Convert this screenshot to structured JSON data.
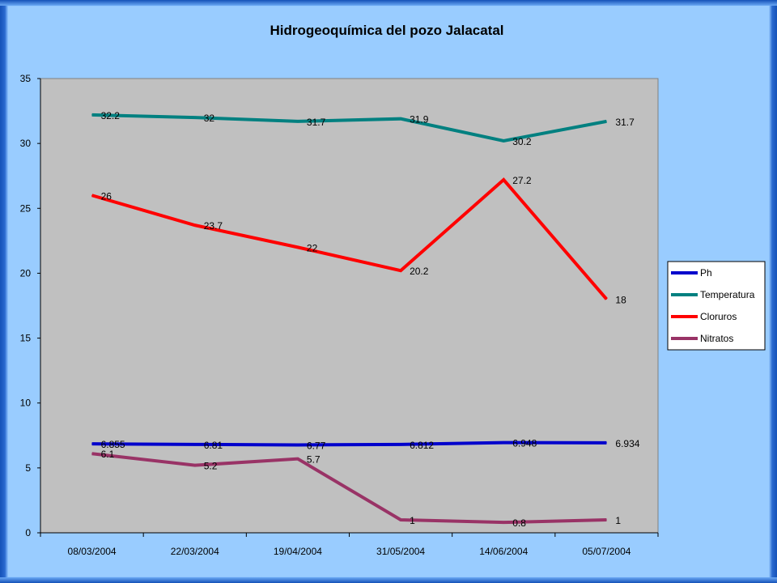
{
  "chart_data": {
    "type": "line",
    "title": "Hidrogeoquímica del pozo Jalacatal",
    "xlabel": "",
    "ylabel": "",
    "categories": [
      "08/03/2004",
      "22/03/2004",
      "19/04/2004",
      "31/05/2004",
      "14/06/2004",
      "05/07/2004"
    ],
    "ylim": [
      0,
      35
    ],
    "yticks": [
      "0",
      "5",
      "10",
      "15",
      "20",
      "25",
      "30",
      "35"
    ],
    "grid": false,
    "legend_position": "right",
    "series": [
      {
        "name": "Ph",
        "color": "#0000cc",
        "values": [
          6.855,
          6.81,
          6.77,
          6.812,
          6.948,
          6.934
        ],
        "labels": [
          "6.855",
          "6.81",
          "6.77",
          "6.812",
          "6.948",
          "6.934"
        ]
      },
      {
        "name": "Temperatura",
        "color": "#008080",
        "values": [
          32.2,
          32,
          31.7,
          31.9,
          30.2,
          31.7
        ],
        "labels": [
          "32.2",
          "32",
          "31.7",
          "31.9",
          "30.2",
          "31.7"
        ]
      },
      {
        "name": "Cloruros",
        "color": "#ff0000",
        "values": [
          26,
          23.7,
          22,
          20.2,
          27.2,
          18
        ],
        "labels": [
          "26",
          "23.7",
          "22",
          "20.2",
          "27.2",
          "18"
        ]
      },
      {
        "name": "Nitratos",
        "color": "#993366",
        "values": [
          6.1,
          5.2,
          5.7,
          1,
          0.8,
          1
        ],
        "labels": [
          "6.1",
          "5.2",
          "5.7",
          "1",
          "0.8",
          "1"
        ]
      }
    ]
  }
}
